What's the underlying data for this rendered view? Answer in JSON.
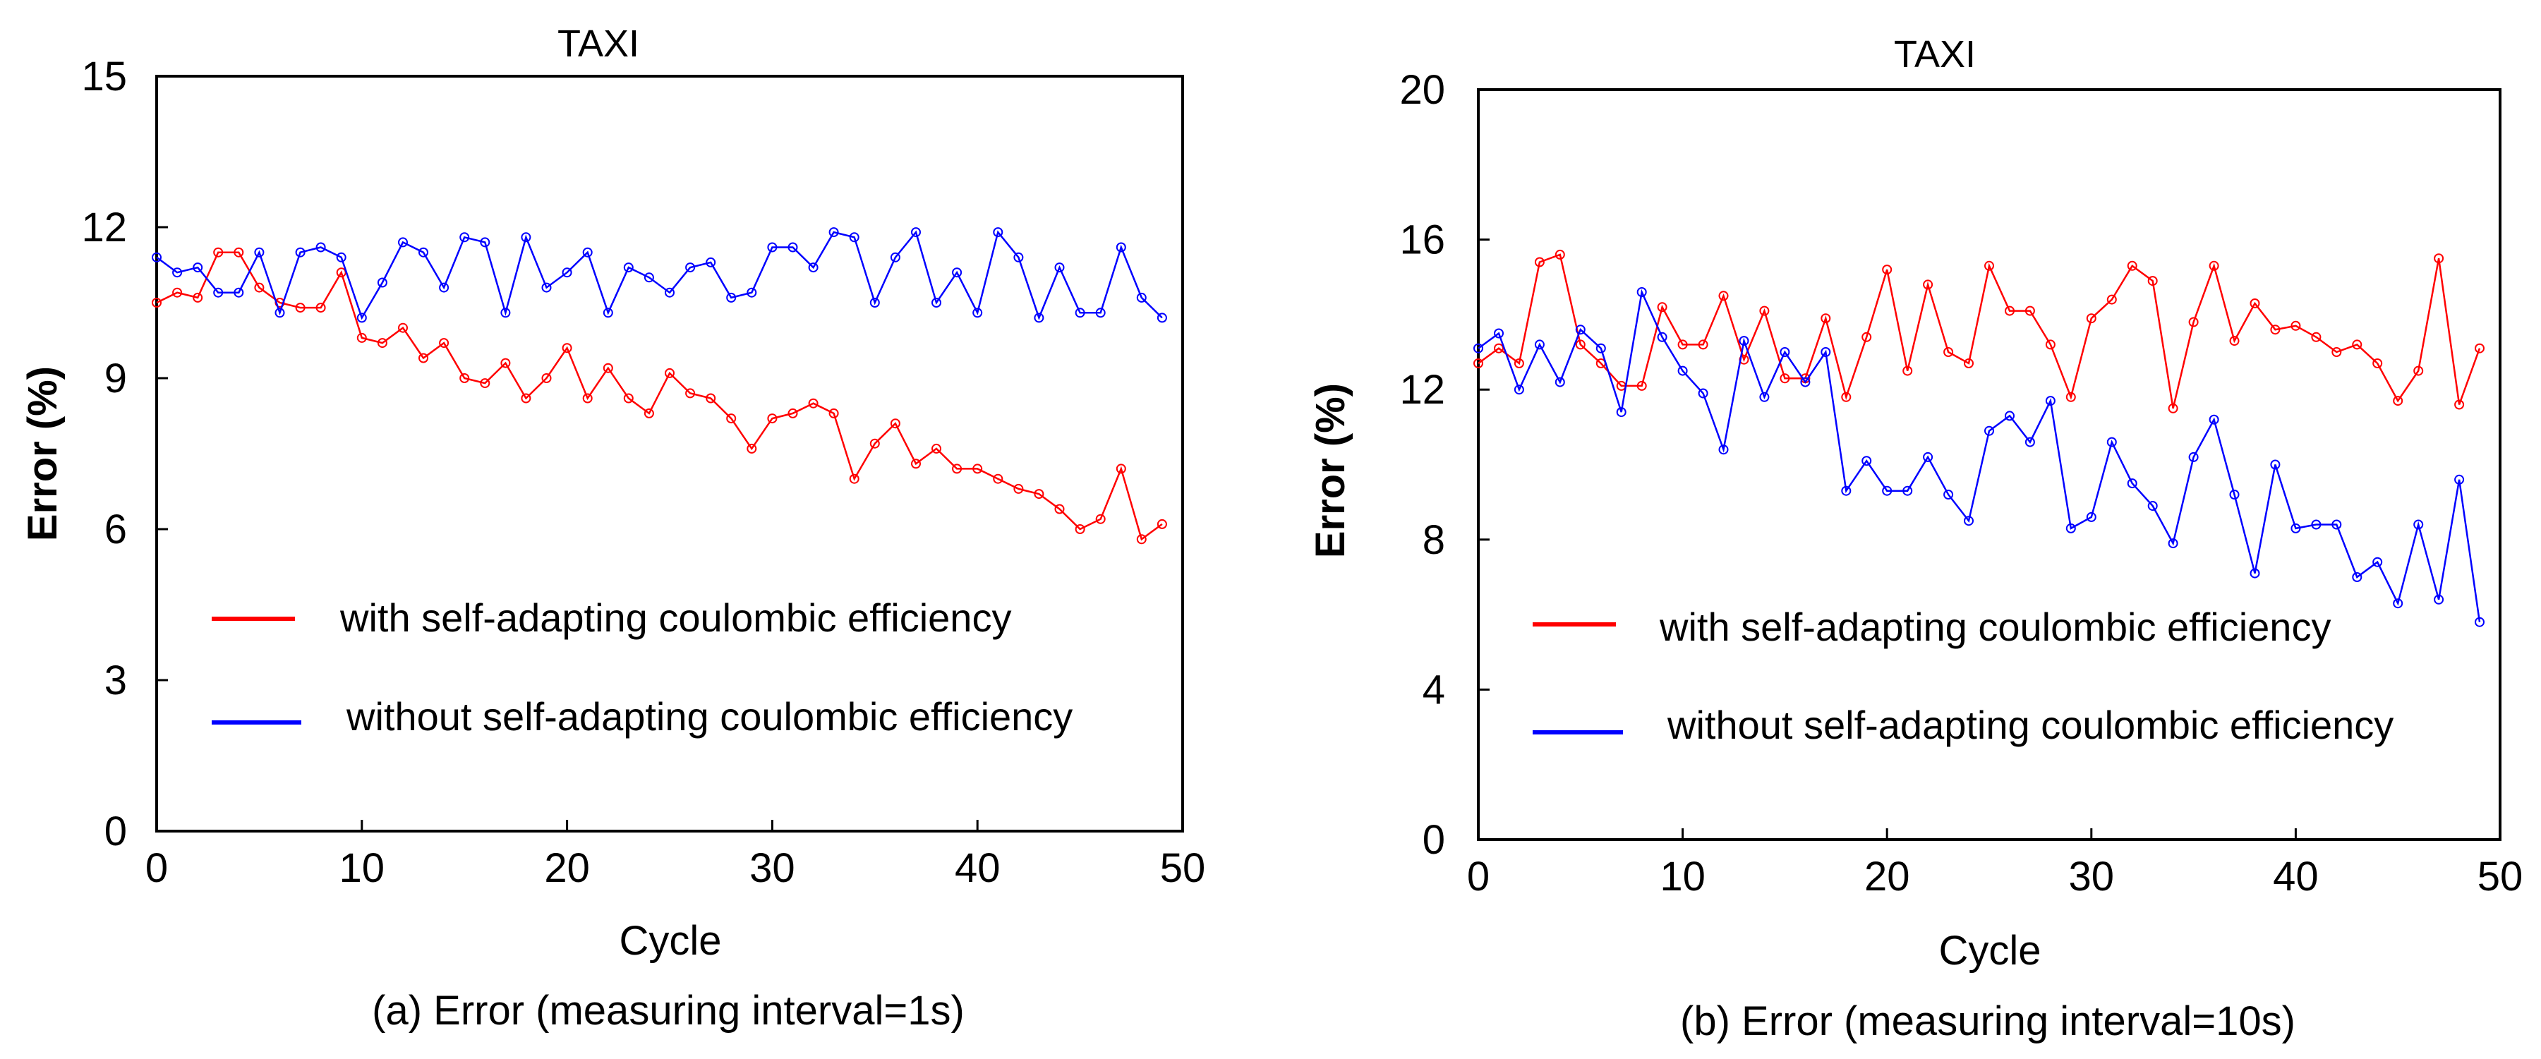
{
  "figure": {
    "colors": {
      "with": "#ff0000",
      "without": "#0000ff",
      "axis": "#000000"
    }
  },
  "chart_data": [
    {
      "type": "line",
      "title": "TAXI",
      "xlabel": "Cycle",
      "ylabel": "Error (%)",
      "caption": "(a) Error (measuring interval=1s)",
      "xlim": [
        0,
        50
      ],
      "ylim": [
        0,
        15
      ],
      "xticks": [
        0,
        10,
        20,
        30,
        40,
        50
      ],
      "yticks": [
        0,
        3,
        6,
        9,
        12,
        15
      ],
      "xtick_labels": [
        "0",
        "10",
        "20",
        "30",
        "40",
        "50"
      ],
      "ytick_labels": [
        "0",
        "3",
        "6",
        "9",
        "12",
        "15"
      ],
      "legend": [
        "with self-adapting coulombic efficiency",
        "without self-adapting coulombic efficiency"
      ],
      "x": [
        0,
        1,
        2,
        3,
        4,
        5,
        6,
        7,
        8,
        9,
        10,
        11,
        12,
        13,
        14,
        15,
        16,
        17,
        18,
        19,
        20,
        21,
        22,
        23,
        24,
        25,
        26,
        27,
        28,
        29,
        30,
        31,
        32,
        33,
        34,
        35,
        36,
        37,
        38,
        39,
        40,
        41,
        42,
        43,
        44,
        45,
        46,
        47,
        48,
        49,
        50
      ],
      "series": [
        {
          "name": "with self-adapting coulombic efficiency",
          "color": "#ff0000",
          "values": [
            10.5,
            10.7,
            10.6,
            11.5,
            11.5,
            10.8,
            10.5,
            10.4,
            10.4,
            11.1,
            9.8,
            9.7,
            10.0,
            9.4,
            9.7,
            9.0,
            8.9,
            9.3,
            8.6,
            9.0,
            9.6,
            8.6,
            9.2,
            8.6,
            8.3,
            9.1,
            8.7,
            8.6,
            8.2,
            7.6,
            8.2,
            8.3,
            8.5,
            8.3,
            7.0,
            7.7,
            8.1,
            7.3,
            7.6,
            7.2,
            7.2,
            7.0,
            6.8,
            6.7,
            6.4,
            6.0,
            6.2,
            7.2,
            5.8,
            6.1,
            null
          ]
        },
        {
          "name": "without self-adapting coulombic efficiency",
          "color": "#0000ff",
          "values": [
            11.4,
            11.1,
            11.2,
            10.7,
            10.7,
            11.5,
            10.3,
            11.5,
            11.6,
            11.4,
            10.2,
            10.9,
            11.7,
            11.5,
            10.8,
            11.8,
            11.7,
            10.3,
            11.8,
            10.8,
            11.1,
            11.5,
            10.3,
            11.2,
            11.0,
            10.7,
            11.2,
            11.3,
            10.6,
            10.7,
            11.6,
            11.6,
            11.2,
            11.9,
            11.8,
            10.5,
            11.4,
            11.9,
            10.5,
            11.1,
            10.3,
            11.9,
            11.4,
            10.2,
            11.2,
            10.3,
            10.3,
            11.6,
            10.6,
            10.2,
            null
          ]
        }
      ]
    },
    {
      "type": "line",
      "title": "TAXI",
      "xlabel": "Cycle",
      "ylabel": "Error (%)",
      "caption": "(b) Error (measuring interval=10s)",
      "xlim": [
        0,
        50
      ],
      "ylim": [
        0,
        20
      ],
      "xticks": [
        0,
        10,
        20,
        30,
        40,
        50
      ],
      "yticks": [
        0,
        4,
        8,
        12,
        16,
        20
      ],
      "xtick_labels": [
        "0",
        "10",
        "20",
        "30",
        "40",
        "50"
      ],
      "ytick_labels": [
        "0",
        "4",
        "8",
        "12",
        "16",
        "20"
      ],
      "legend": [
        "with self-adapting coulombic efficiency",
        "without self-adapting coulombic efficiency"
      ],
      "x": [
        0,
        1,
        2,
        3,
        4,
        5,
        6,
        7,
        8,
        9,
        10,
        11,
        12,
        13,
        14,
        15,
        16,
        17,
        18,
        19,
        20,
        21,
        22,
        23,
        24,
        25,
        26,
        27,
        28,
        29,
        30,
        31,
        32,
        33,
        34,
        35,
        36,
        37,
        38,
        39,
        40,
        41,
        42,
        43,
        44,
        45,
        46,
        47,
        48,
        49,
        50
      ],
      "series": [
        {
          "name": "with self-adapting coulombic efficiency",
          "color": "#ff0000",
          "values": [
            12.7,
            13.1,
            12.7,
            15.4,
            15.6,
            13.2,
            12.7,
            12.1,
            12.1,
            14.2,
            13.2,
            13.2,
            14.5,
            12.8,
            14.1,
            12.3,
            12.3,
            13.9,
            11.8,
            13.4,
            15.2,
            12.5,
            14.8,
            13.0,
            12.7,
            15.3,
            14.1,
            14.1,
            13.2,
            11.8,
            13.9,
            14.4,
            15.3,
            14.9,
            11.5,
            13.8,
            15.3,
            13.3,
            14.3,
            13.6,
            13.7,
            13.4,
            13.0,
            13.2,
            12.7,
            11.7,
            12.5,
            15.5,
            11.6,
            13.1,
            null
          ]
        },
        {
          "name": "without self-adapting coulombic efficiency",
          "color": "#0000ff",
          "values": [
            13.1,
            13.5,
            12.0,
            13.2,
            12.2,
            13.6,
            13.1,
            11.4,
            14.6,
            13.4,
            12.5,
            11.9,
            10.4,
            13.3,
            11.8,
            13.0,
            12.2,
            13.0,
            9.3,
            10.1,
            9.3,
            9.3,
            10.2,
            9.2,
            8.5,
            10.9,
            11.3,
            10.6,
            11.7,
            8.3,
            8.6,
            10.6,
            9.5,
            8.9,
            7.9,
            10.2,
            11.2,
            9.2,
            7.1,
            10.0,
            8.3,
            8.4,
            8.4,
            7.0,
            7.4,
            6.3,
            8.4,
            6.4,
            9.6,
            5.8,
            null
          ]
        }
      ]
    }
  ]
}
